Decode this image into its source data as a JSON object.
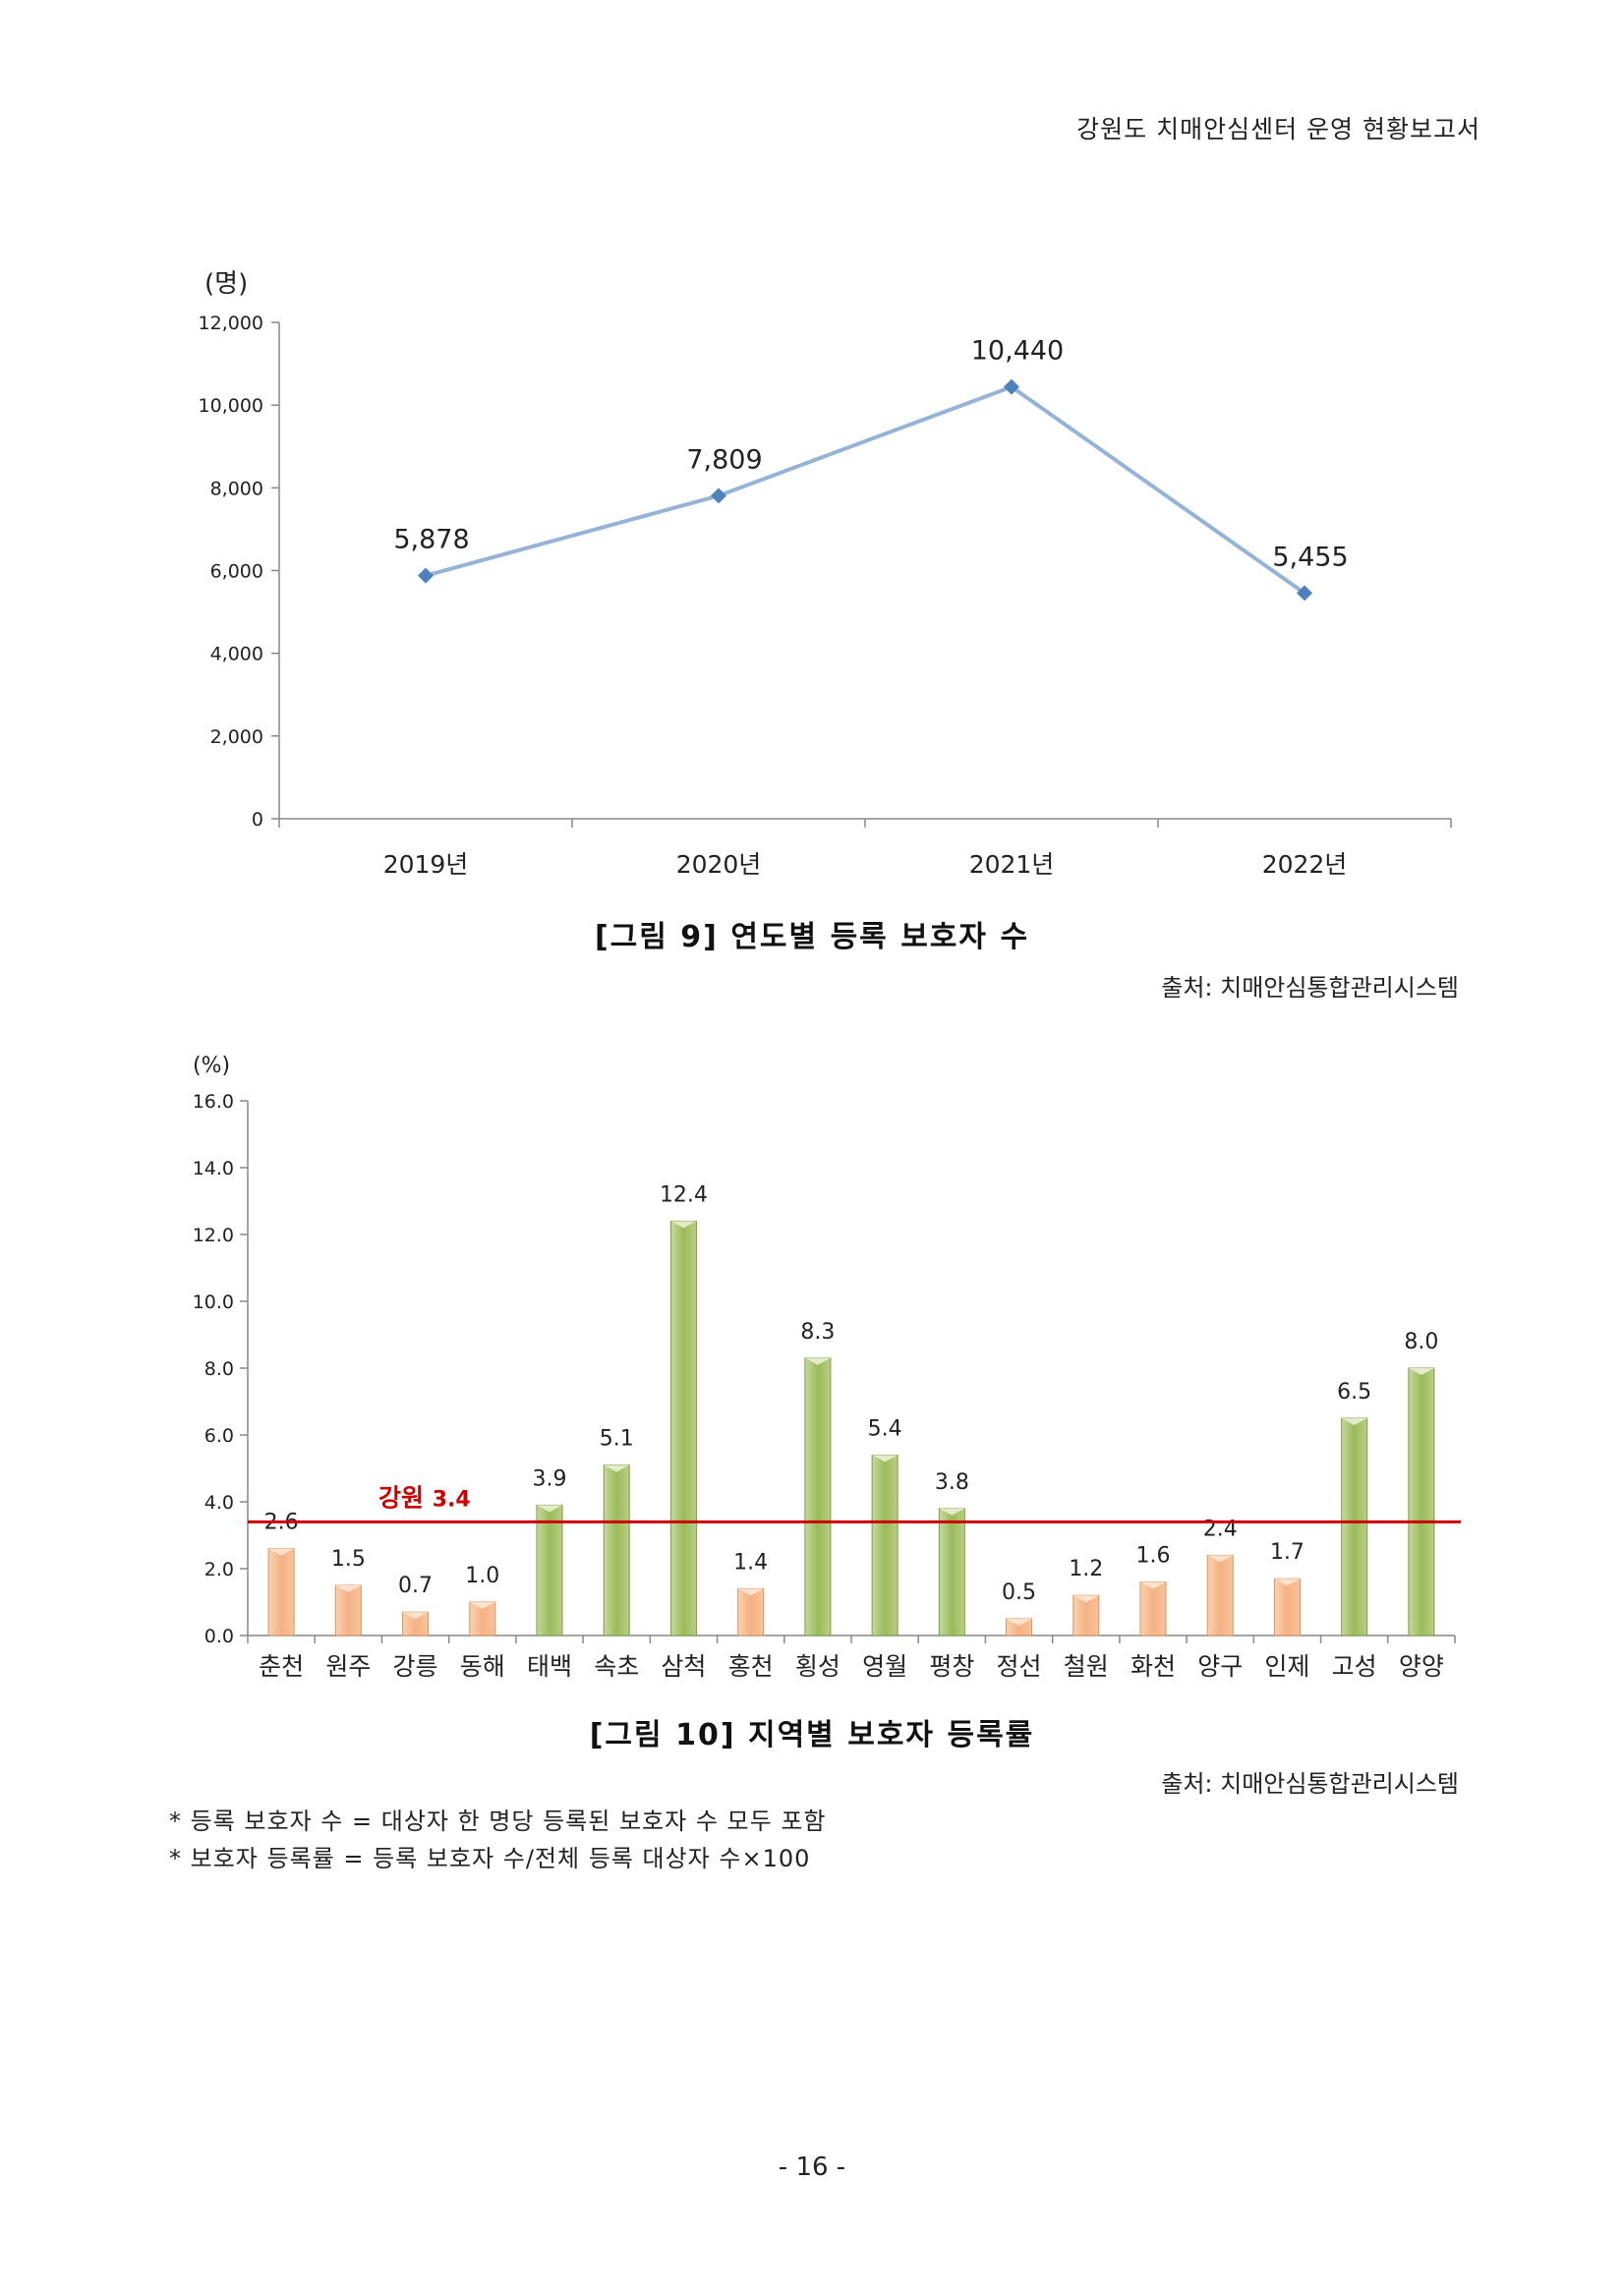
{
  "header": "강원도 치매안심센터 운영 현황보고서",
  "chart_data": [
    {
      "type": "line",
      "title": "",
      "ylabel": "(명)",
      "categories": [
        "2019년",
        "2020년",
        "2021년",
        "2022년"
      ],
      "values": [
        5878,
        7809,
        10440,
        5455
      ],
      "data_labels": [
        "5,878",
        "7,809",
        "10,440",
        "5,455"
      ],
      "ylim": [
        0,
        12000
      ],
      "yticks": [
        "0",
        "2,000",
        "4,000",
        "6,000",
        "8,000",
        "10,000",
        "12,000"
      ],
      "grid": false,
      "line_color": "#95b3d7",
      "marker_color": "#4f81bd"
    },
    {
      "type": "bar",
      "title": "",
      "ylabel": "(%)",
      "categories": [
        "춘천",
        "원주",
        "강릉",
        "동해",
        "태백",
        "속초",
        "삼척",
        "홍천",
        "횡성",
        "영월",
        "평창",
        "정선",
        "철원",
        "화천",
        "양구",
        "인제",
        "고성",
        "양양"
      ],
      "values": [
        2.6,
        1.5,
        0.7,
        1.0,
        3.9,
        5.1,
        12.4,
        1.4,
        8.3,
        5.4,
        3.8,
        0.5,
        1.2,
        1.6,
        2.4,
        1.7,
        6.5,
        8.0
      ],
      "data_labels": [
        "2.6",
        "1.5",
        "0.7",
        "1.0",
        "3.9",
        "5.1",
        "12.4",
        "1.4",
        "8.3",
        "5.4",
        "3.8",
        "0.5",
        "1.2",
        "1.6",
        "2.4",
        "1.7",
        "6.5",
        "8.0"
      ],
      "ylim": [
        0,
        16
      ],
      "yticks": [
        "0.0",
        "2.0",
        "4.0",
        "6.0",
        "8.0",
        "10.0",
        "12.0",
        "14.0",
        "16.0"
      ],
      "reference_line": {
        "value": 3.4,
        "label_text": "강원",
        "label_value": "3.4",
        "color": "#cc0000"
      },
      "above_color": "#9bbb59",
      "below_color": "#f4b183",
      "grid": false
    }
  ],
  "figure9_caption": "[그림 9] 연도별 등록 보호자 수",
  "figure9_source": "출처: 치매안심통합관리시스템",
  "figure10_caption": "[그림 10] 지역별 보호자 등록률",
  "figure10_source": "출처: 치매안심통합관리시스템",
  "notes": [
    "* 등록 보호자 수 = 대상자 한 명당 등록된 보호자 수 모두 포함",
    "* 보호자 등록률 = 등록 보호자 수/전체 등록 대상자 수×100"
  ],
  "page_number": "- 16 -"
}
